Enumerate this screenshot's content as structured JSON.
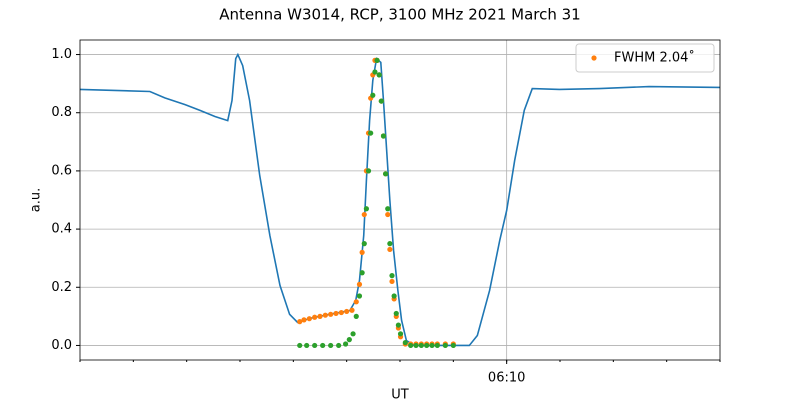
{
  "chart_data": {
    "type": "line",
    "title": "Antenna W3014, RCP, 3100 MHz 2021 March 31",
    "x_label": "UT",
    "y_label": "a.u.",
    "xlim": [
      362,
      374
    ],
    "ylim": [
      -0.05,
      1.05
    ],
    "xticks": [
      {
        "value": 370,
        "label": "06:10"
      }
    ],
    "xminorticks": [
      362,
      363,
      364,
      365,
      366,
      367,
      368,
      369,
      370,
      371,
      372,
      373,
      374
    ],
    "yticks": [
      {
        "value": 0,
        "label": "0.0"
      },
      0.2,
      0.4,
      0.6,
      0.8,
      {
        "value": 1,
        "label": "1.0"
      }
    ],
    "grid": true,
    "legend": "upper right",
    "series": [
      {
        "mode": "line",
        "color": "#1f77b4",
        "x": [
          362.0,
          363.31,
          363.59,
          363.97,
          364.25,
          364.53,
          364.77,
          364.85,
          364.92,
          364.96,
          365.05,
          365.18,
          365.37,
          365.56,
          365.75,
          365.93,
          366.08,
          366.31,
          366.68,
          367.06,
          367.17,
          367.24,
          367.32,
          367.37,
          367.43,
          367.49,
          367.56,
          367.64,
          367.69,
          367.75,
          367.81,
          367.88,
          367.96,
          368.03,
          368.12,
          368.27,
          369.3,
          369.45,
          369.68,
          369.87,
          370.0,
          370.15,
          370.33,
          370.48,
          370.99,
          371.74,
          372.67,
          374.0
        ],
        "values": [
          0.88,
          0.873,
          0.851,
          0.828,
          0.808,
          0.787,
          0.773,
          0.842,
          0.986,
          1.0,
          0.962,
          0.842,
          0.584,
          0.378,
          0.206,
          0.107,
          0.079,
          0.093,
          0.107,
          0.12,
          0.155,
          0.223,
          0.378,
          0.567,
          0.773,
          0.911,
          0.986,
          0.973,
          0.842,
          0.67,
          0.498,
          0.326,
          0.189,
          0.086,
          0.017,
          0,
          0,
          0.034,
          0.189,
          0.361,
          0.464,
          0.636,
          0.808,
          0.883,
          0.88,
          0.883,
          0.89,
          0.887
        ]
      },
      {
        "mode": "points",
        "name": "FWHM 2.04˚",
        "color": "#ff7f0e",
        "x": [
          366.12,
          366.2,
          366.3,
          366.4,
          366.5,
          366.6,
          366.7,
          366.8,
          366.9,
          367.0,
          367.1,
          367.18,
          367.24,
          367.29,
          367.33,
          367.37,
          367.41,
          367.45,
          367.49,
          367.53,
          367.57,
          367.61,
          367.65,
          367.69,
          367.73,
          367.77,
          367.81,
          367.85,
          367.89,
          367.93,
          367.97,
          368.01,
          368.1,
          368.2,
          368.3,
          368.4,
          368.5,
          368.6,
          368.7,
          368.85,
          369.0
        ],
        "values": [
          0.082,
          0.088,
          0.092,
          0.097,
          0.1,
          0.104,
          0.107,
          0.11,
          0.113,
          0.117,
          0.121,
          0.15,
          0.21,
          0.32,
          0.45,
          0.6,
          0.73,
          0.85,
          0.93,
          0.98,
          0.98,
          0.93,
          0.84,
          0.72,
          0.59,
          0.45,
          0.33,
          0.22,
          0.16,
          0.1,
          0.06,
          0.03,
          0.005,
          0.005,
          0.005,
          0.005,
          0.005,
          0.005,
          0.005,
          0.005,
          0.005
        ]
      },
      {
        "mode": "points",
        "color": "#2ca02c",
        "x": [
          366.12,
          366.25,
          366.4,
          366.55,
          366.7,
          366.85,
          366.98,
          367.05,
          367.12,
          367.18,
          367.24,
          367.29,
          367.33,
          367.37,
          367.41,
          367.45,
          367.49,
          367.53,
          367.57,
          367.61,
          367.65,
          367.69,
          367.73,
          367.77,
          367.81,
          367.85,
          367.89,
          367.93,
          367.97,
          368.01,
          368.1,
          368.2,
          368.3,
          368.4,
          368.5,
          368.6,
          368.7,
          368.85,
          369.0
        ],
        "values": [
          0,
          0,
          0,
          0,
          0,
          0,
          0.005,
          0.02,
          0.04,
          0.1,
          0.17,
          0.25,
          0.35,
          0.47,
          0.6,
          0.73,
          0.86,
          0.94,
          0.98,
          0.93,
          0.84,
          0.72,
          0.59,
          0.47,
          0.35,
          0.24,
          0.17,
          0.11,
          0.07,
          0.04,
          0.01,
          0,
          0,
          0,
          0,
          0,
          0,
          0,
          0
        ]
      }
    ]
  }
}
